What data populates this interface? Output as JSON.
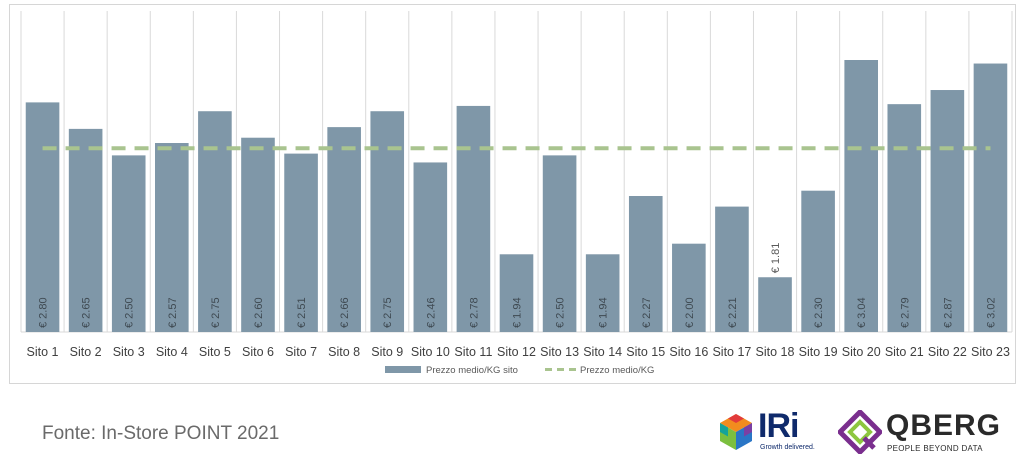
{
  "chart_data": {
    "type": "bar",
    "categories": [
      "Sito 1",
      "Sito 2",
      "Sito 3",
      "Sito 4",
      "Sito 5",
      "Sito 6",
      "Sito 7",
      "Sito 8",
      "Sito 9",
      "Sito 10",
      "Sito 11",
      "Sito 12",
      "Sito 13",
      "Sito 14",
      "Sito 15",
      "Sito 16",
      "Sito 17",
      "Sito 18",
      "Sito 19",
      "Sito 20",
      "Sito 21",
      "Sito 22",
      "Sito 23"
    ],
    "series": [
      {
        "name": "Prezzo medio/KG sito",
        "type": "bar",
        "color": "#7f97a8",
        "values": [
          2.8,
          2.65,
          2.5,
          2.57,
          2.75,
          2.6,
          2.51,
          2.66,
          2.75,
          2.46,
          2.78,
          1.94,
          2.5,
          1.94,
          2.27,
          2.0,
          2.21,
          1.81,
          2.3,
          3.04,
          2.79,
          2.87,
          3.02
        ]
      },
      {
        "name": "Prezzo medio/KG",
        "type": "line",
        "style": "dashed",
        "color": "#a9c48f",
        "values": [
          2.54,
          2.54,
          2.54,
          2.54,
          2.54,
          2.54,
          2.54,
          2.54,
          2.54,
          2.54,
          2.54,
          2.54,
          2.54,
          2.54,
          2.54,
          2.54,
          2.54,
          2.54,
          2.54,
          2.54,
          2.54,
          2.54,
          2.54
        ]
      }
    ],
    "data_labels": [
      "€ 2.80",
      "€ 2.65",
      "€ 2.50",
      "€ 2.57",
      "€ 2.75",
      "€ 2.60",
      "€ 2.51",
      "€ 2.66",
      "€ 2.75",
      "€ 2.46",
      "€ 2.78",
      "€ 1.94",
      "€ 2.50",
      "€ 1.94",
      "€ 2.27",
      "€ 2.00",
      "€ 2.21",
      "€ 1.81",
      "€ 2.30",
      "€ 3.04",
      "€ 2.79",
      "€ 2.87",
      "€ 3.02"
    ],
    "ylim": [
      1.5,
      3.1
    ],
    "grid": "vertical",
    "legend": "bottom-center",
    "title": "",
    "xlabel": "",
    "ylabel": ""
  },
  "source_text": "Fonte: In-Store POINT 2021",
  "logos": {
    "iri": {
      "name": "IRi",
      "tagline": "Growth delivered."
    },
    "qberg": {
      "name": "QBERG",
      "tagline": "PEOPLE BEYOND DATA"
    }
  }
}
